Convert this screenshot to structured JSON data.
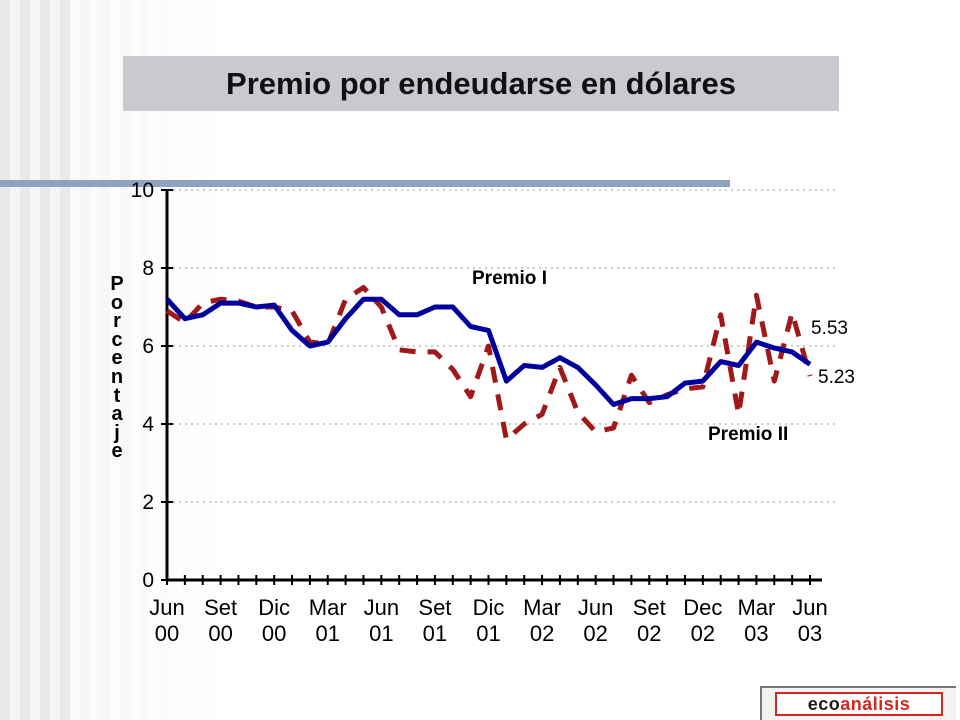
{
  "title": "Premio por endeudarse en dólares",
  "ylabel": "Porcentaje",
  "logo": {
    "part1": "eco",
    "part2": "análisis"
  },
  "colors": {
    "premio_i": "#00009c",
    "premio_ii": "#a01818",
    "title_bg": "#c9cacf",
    "rule": "#8fa3c1"
  },
  "chart_data": {
    "type": "line",
    "title": "Premio por endeudarse en dólares",
    "xlabel": "",
    "ylabel": "Porcentaje",
    "ylim": [
      0,
      10
    ],
    "yticks": [
      0,
      2,
      4,
      6,
      8,
      10
    ],
    "grid": "horizontal dotted",
    "x_tick_labels": [
      [
        "Jun",
        "00"
      ],
      [
        "Set",
        "00"
      ],
      [
        "Dic",
        "00"
      ],
      [
        "Mar",
        "01"
      ],
      [
        "Jun",
        "01"
      ],
      [
        "Set",
        "01"
      ],
      [
        "Dic",
        "01"
      ],
      [
        "Mar",
        "02"
      ],
      [
        "Jun",
        "02"
      ],
      [
        "Set",
        "02"
      ],
      [
        "Dec",
        "02"
      ],
      [
        "Mar",
        "03"
      ],
      [
        "Jun",
        "03"
      ]
    ],
    "x_tick_positions": [
      0,
      3,
      6,
      9,
      12,
      15,
      18,
      21,
      24,
      27,
      30,
      33,
      36
    ],
    "x_range": [
      0,
      36
    ],
    "series": [
      {
        "name": "Premio I",
        "style": "solid",
        "x": [
          0,
          1,
          2,
          3,
          4,
          5,
          6,
          7,
          8,
          9,
          10,
          11,
          12,
          13,
          14,
          15,
          16,
          17,
          18,
          19,
          20,
          21,
          22,
          23,
          24,
          25,
          26,
          27,
          28,
          29,
          30,
          31,
          32,
          33,
          34,
          35,
          36
        ],
        "values": [
          7.2,
          6.7,
          6.8,
          7.1,
          7.1,
          7.0,
          7.05,
          6.4,
          6.0,
          6.1,
          6.7,
          7.2,
          7.2,
          6.8,
          6.8,
          7.0,
          7.0,
          6.5,
          6.4,
          5.1,
          5.5,
          5.45,
          5.7,
          5.45,
          5.0,
          4.5,
          4.65,
          4.65,
          4.7,
          5.05,
          5.1,
          5.6,
          5.5,
          6.1,
          5.95,
          5.85,
          5.53
        ]
      },
      {
        "name": "Premio II",
        "style": "dashed",
        "x": [
          0,
          1,
          2,
          3,
          4,
          5,
          6,
          7,
          8,
          9,
          10,
          11,
          12,
          13,
          14,
          15,
          16,
          17,
          18,
          19,
          20,
          21,
          22,
          23,
          24,
          25,
          26,
          27,
          28,
          29,
          30,
          31,
          32,
          33,
          34,
          35,
          36
        ],
        "values": [
          6.9,
          6.6,
          7.1,
          7.2,
          7.15,
          7.0,
          7.0,
          6.9,
          6.1,
          6.05,
          7.2,
          7.5,
          7.0,
          5.9,
          5.85,
          5.85,
          5.4,
          4.7,
          6.0,
          3.6,
          4.0,
          4.25,
          5.45,
          4.3,
          3.8,
          3.9,
          5.25,
          4.55,
          4.75,
          4.9,
          4.95,
          6.8,
          4.25,
          7.3,
          5.1,
          6.85,
          5.23
        ]
      }
    ],
    "annotations": [
      {
        "text": "Premio I",
        "series": "Premio I"
      },
      {
        "text": "Premio II",
        "series": "Premio II"
      },
      {
        "text": "5.53",
        "series": "Premio I",
        "x": 36,
        "y": 5.53
      },
      {
        "text": "5.23",
        "series": "Premio II",
        "x": 36,
        "y": 5.23
      }
    ]
  }
}
